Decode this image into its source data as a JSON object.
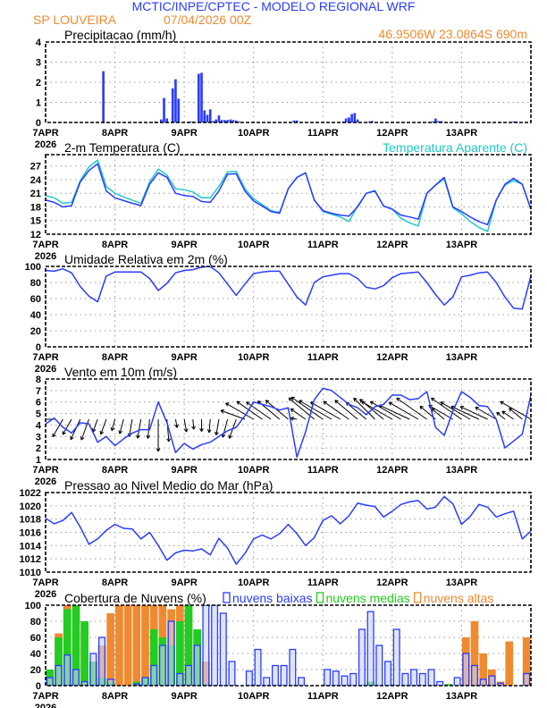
{
  "header": {
    "title": "MCTIC/INPE/CPTEC - MODELO REGIONAL WRF",
    "location": "SP LOUVEIRA",
    "run": "07/04/2026 00Z",
    "coords": "46.9506W 23.0864S 690m"
  },
  "colors": {
    "title": "#2a3cff",
    "orange": "#f08a30",
    "blue": "#2a3cff",
    "cyan": "#20c8c8",
    "green": "#22cc22",
    "low_fill": "#c8d4ff"
  },
  "x_axis": {
    "ticks": [
      "7APR",
      "8APR",
      "9APR",
      "10APR",
      "11APR",
      "12APR",
      "13APR"
    ],
    "year": "2026",
    "xlim": [
      "7APR 00Z",
      "14APR 00Z"
    ]
  },
  "chart_data": [
    {
      "type": "bar",
      "title": "Precipitacao (mm/h)",
      "ylim": [
        0,
        4
      ],
      "yticks": [
        "0",
        "1",
        "2",
        "3",
        "4"
      ],
      "points": [
        [
          "7APR 20Z",
          2.55
        ],
        [
          "8APR 14Z",
          0.05
        ],
        [
          "8APR 16Z",
          0.15
        ],
        [
          "8APR 17Z",
          1.22
        ],
        [
          "8APR 18Z",
          0.2
        ],
        [
          "8APR 20Z",
          1.7
        ],
        [
          "8APR 21Z",
          2.15
        ],
        [
          "8APR 22Z",
          1.18
        ],
        [
          "9APR 02Z",
          0.05
        ],
        [
          "9APR 03Z",
          0.05
        ],
        [
          "9APR 05Z",
          2.42
        ],
        [
          "9APR 06Z",
          2.47
        ],
        [
          "9APR 07Z",
          0.6
        ],
        [
          "9APR 08Z",
          0.38
        ],
        [
          "9APR 09Z",
          0.65
        ],
        [
          "9APR 10Z",
          0.07
        ],
        [
          "9APR 11Z",
          0.15
        ],
        [
          "9APR 12Z",
          0.35
        ],
        [
          "9APR 13Z",
          0.12
        ],
        [
          "9APR 14Z",
          0.12
        ],
        [
          "9APR 15Z",
          0.12
        ],
        [
          "9APR 16Z",
          0.15
        ],
        [
          "9APR 17Z",
          0.12
        ],
        [
          "9APR 18Z",
          0.1
        ],
        [
          "9APR 19Z",
          0.05
        ],
        [
          "10APR 14Z",
          0.1
        ],
        [
          "10APR 15Z",
          0.1
        ],
        [
          "11APR 07Z",
          0.05
        ],
        [
          "11APR 08Z",
          0.2
        ],
        [
          "11APR 09Z",
          0.25
        ],
        [
          "11APR 10Z",
          0.42
        ],
        [
          "11APR 11Z",
          0.47
        ],
        [
          "11APR 12Z",
          0.15
        ],
        [
          "11APR 16Z",
          0.05
        ],
        [
          "11APR 17Z",
          0.08
        ],
        [
          "12APR 14Z",
          0.05
        ],
        [
          "12APR 15Z",
          0.2
        ],
        [
          "12APR 16Z",
          0.07
        ],
        [
          "12APR 17Z",
          0.07
        ],
        [
          "13APR 18Z",
          0.05
        ],
        [
          "13APR 19Z",
          0.05
        ]
      ]
    },
    {
      "type": "line",
      "title": "2-m Temperatura (C)",
      "ylim": [
        12,
        29.5
      ],
      "yticks": [
        "12",
        "15",
        "18",
        "21",
        "24",
        "27"
      ],
      "series": [
        {
          "name": "Temperatura Aparente (C)",
          "color": "#20c8c8",
          "values": [
            20.5,
            20.0,
            18.8,
            19.0,
            23.8,
            26.8,
            28.3,
            22.5,
            21.0,
            20.2,
            19.5,
            18.8,
            23.5,
            26.3,
            25.0,
            22.0,
            21.8,
            21.3,
            20.0,
            20.0,
            22.5,
            25.7,
            25.8,
            22.0,
            19.8,
            18.5,
            17.2,
            16.8,
            22.0,
            24.5,
            25.5,
            19.5,
            17.0,
            16.4,
            15.8,
            14.8,
            18.2,
            21.0,
            21.6,
            18.2,
            17.5,
            15.5,
            14.5,
            13.8,
            21.0,
            22.8,
            24.2,
            17.8,
            16.5,
            14.8,
            13.5,
            12.6,
            19.5,
            22.8,
            23.8,
            23.0,
            17.5
          ]
        },
        {
          "color": "#2a3cff",
          "values": [
            19.5,
            19.0,
            18.0,
            18.3,
            23.5,
            26.0,
            27.5,
            21.5,
            20.0,
            19.4,
            18.8,
            18.3,
            23.0,
            25.5,
            24.5,
            21.0,
            20.5,
            20.3,
            19.2,
            19.0,
            21.5,
            25.2,
            25.3,
            21.5,
            19.3,
            18.2,
            17.0,
            16.6,
            22.0,
            24.5,
            25.5,
            19.5,
            17.2,
            16.6,
            16.2,
            16.0,
            18.0,
            21.0,
            21.5,
            18.2,
            17.5,
            16.2,
            15.8,
            15.3,
            21.0,
            22.8,
            24.5,
            18.0,
            17.0,
            15.8,
            14.8,
            14.1,
            19.5,
            23.0,
            24.3,
            23.0,
            17.5
          ]
        }
      ]
    },
    {
      "type": "line",
      "title": "Umidade Relativa em 2m (%)",
      "ylim": [
        0,
        100
      ],
      "yticks": [
        "0",
        "20",
        "40",
        "60",
        "80",
        "100"
      ],
      "series": [
        {
          "color": "#2a3cff",
          "values": [
            95,
            94,
            97,
            92,
            75,
            63,
            56,
            88,
            93,
            93,
            93,
            93,
            85,
            70,
            79,
            92,
            95,
            96,
            99,
            100,
            92,
            78,
            64,
            78,
            91,
            93,
            94,
            94,
            78,
            62,
            52,
            80,
            87,
            89,
            91,
            91,
            85,
            74,
            72,
            76,
            86,
            91,
            92,
            93,
            80,
            65,
            52,
            62,
            87,
            89,
            92,
            93,
            80,
            62,
            48,
            47,
            88
          ]
        }
      ]
    },
    {
      "type": "line",
      "title": "Vento em 10m (m/s)",
      "ylim": [
        1,
        8
      ],
      "yticks": [
        "1",
        "2",
        "3",
        "4",
        "5",
        "6",
        "7",
        "8"
      ],
      "series": [
        {
          "color": "#2a3cff",
          "values": [
            4.1,
            4.6,
            3.8,
            3.3,
            4.2,
            4.1,
            2.5,
            3.0,
            2.2,
            2.8,
            3.3,
            3.6,
            3.6,
            6.0,
            4.2,
            1.6,
            2.4,
            1.9,
            2.3,
            2.5,
            3.0,
            3.5,
            3.8,
            4.8,
            6.0,
            5.8,
            5.6,
            5.3,
            5.5,
            1.2,
            3.4,
            6.2,
            7.2,
            7.0,
            6.4,
            5.8,
            5.5,
            4.9,
            5.6,
            5.8,
            6.6,
            6.6,
            6.2,
            6.3,
            6.9,
            3.8,
            3.1,
            5.2,
            6.9,
            6.4,
            5.7,
            5.6,
            4.5,
            2.0,
            2.6,
            3.2,
            6.6
          ]
        }
      ],
      "wind_direction_deg": [
        90,
        90,
        30,
        30,
        25,
        20,
        20,
        20,
        15,
        15,
        10,
        10,
        5,
        0,
        355,
        350,
        350,
        355,
        0,
        5,
        10,
        15,
        20,
        110,
        120,
        125,
        125,
        130,
        130,
        100,
        125,
        130,
        125,
        120,
        120,
        125,
        130,
        130,
        135,
        130,
        120,
        120,
        115,
        120,
        125,
        130,
        130,
        120,
        125,
        120,
        115,
        115,
        120,
        130,
        125,
        130,
        120
      ]
    },
    {
      "type": "line",
      "title": "Pressao ao Nivel Medio do Mar (hPa)",
      "ylim": [
        1010,
        1022
      ],
      "yticks": [
        "1010",
        "1012",
        "1014",
        "1016",
        "1018",
        "1020",
        "1022"
      ],
      "series": [
        {
          "color": "#2a3cff",
          "values": [
            1018.1,
            1017.3,
            1017.8,
            1019.0,
            1016.8,
            1014.2,
            1015.0,
            1016.3,
            1017.2,
            1016.6,
            1016.5,
            1015.0,
            1016.0,
            1014.0,
            1011.8,
            1012.9,
            1013.3,
            1013.2,
            1013.5,
            1012.6,
            1015.1,
            1013.6,
            1011.2,
            1012.8,
            1015.0,
            1015.6,
            1015.0,
            1015.8,
            1017.2,
            1015.8,
            1014.0,
            1015.2,
            1017.8,
            1018.5,
            1017.3,
            1018.5,
            1020.4,
            1020.1,
            1019.9,
            1018.3,
            1019.2,
            1020.2,
            1020.6,
            1020.8,
            1019.5,
            1019.8,
            1021.4,
            1020.3,
            1017.2,
            1018.4,
            1020.2,
            1019.8,
            1018.3,
            1018.8,
            1019.2,
            1015.0,
            1016.2
          ]
        }
      ]
    },
    {
      "type": "bar",
      "title": "Cobertura de Nuvens (%)",
      "ylim": [
        0,
        100
      ],
      "yticks": [
        "0",
        "20",
        "40",
        "60",
        "80",
        "100"
      ],
      "legend": "top-right",
      "series": [
        {
          "name": "nuvens altas",
          "color": "#f08a30",
          "values": [
            20,
            65,
            100,
            100,
            70,
            30,
            50,
            90,
            100,
            100,
            100,
            100,
            100,
            100,
            95,
            100,
            90,
            70,
            30,
            0,
            0,
            0,
            0,
            0,
            0,
            0,
            0,
            0,
            0,
            0,
            0,
            0,
            0,
            0,
            0,
            0,
            0,
            0,
            0,
            0,
            0,
            0,
            0,
            0,
            0,
            0,
            0,
            0,
            60,
            80,
            40,
            20,
            5,
            55,
            0,
            60
          ]
        },
        {
          "name": "nuvens medias",
          "color": "#22cc22",
          "values": [
            20,
            60,
            95,
            100,
            80,
            30,
            10,
            5,
            0,
            0,
            5,
            10,
            70,
            60,
            50,
            80,
            100,
            70,
            2,
            0,
            0,
            0,
            0,
            0,
            0,
            0,
            0,
            0,
            0,
            0,
            0,
            0,
            0,
            0,
            0,
            0,
            0,
            5,
            0,
            0,
            0,
            0,
            0,
            0,
            0,
            0,
            2,
            0,
            0,
            0,
            0,
            0,
            0,
            0,
            0,
            0
          ]
        },
        {
          "name": "nuvens baixas",
          "color": "#2a3cff",
          "values": [
            10,
            25,
            38,
            20,
            5,
            40,
            60,
            8,
            0,
            0,
            2,
            10,
            25,
            50,
            80,
            15,
            25,
            50,
            100,
            100,
            90,
            30,
            0,
            18,
            45,
            10,
            25,
            25,
            45,
            10,
            0,
            0,
            20,
            18,
            12,
            15,
            70,
            92,
            50,
            30,
            70,
            15,
            20,
            15,
            20,
            5,
            0,
            10,
            40,
            25,
            8,
            12,
            3,
            0,
            0,
            15
          ]
        }
      ]
    }
  ],
  "times": [
    "7APR 00Z",
    "7APR 03Z",
    "7APR 06Z",
    "7APR 09Z",
    "7APR 12Z",
    "7APR 15Z",
    "7APR 18Z",
    "7APR 21Z",
    "8APR 00Z",
    "8APR 03Z",
    "8APR 06Z",
    "8APR 09Z",
    "8APR 12Z",
    "8APR 15Z",
    "8APR 18Z",
    "8APR 21Z",
    "9APR 00Z",
    "9APR 03Z",
    "9APR 06Z",
    "9APR 09Z",
    "9APR 12Z",
    "9APR 15Z",
    "9APR 18Z",
    "9APR 21Z",
    "10APR 00Z",
    "10APR 03Z",
    "10APR 06Z",
    "10APR 09Z",
    "10APR 12Z",
    "10APR 15Z",
    "10APR 18Z",
    "10APR 21Z",
    "11APR 00Z",
    "11APR 03Z",
    "11APR 06Z",
    "11APR 09Z",
    "11APR 12Z",
    "11APR 15Z",
    "11APR 18Z",
    "11APR 21Z",
    "12APR 00Z",
    "12APR 03Z",
    "12APR 06Z",
    "12APR 09Z",
    "12APR 12Z",
    "12APR 15Z",
    "12APR 18Z",
    "12APR 21Z",
    "13APR 00Z",
    "13APR 03Z",
    "13APR 06Z",
    "13APR 09Z",
    "13APR 12Z",
    "13APR 15Z",
    "13APR 18Z",
    "13APR 21Z",
    "14APR 00Z"
  ]
}
